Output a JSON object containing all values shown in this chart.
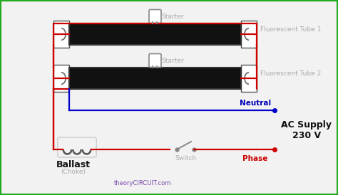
{
  "bg_color": "#f2f2f2",
  "border_color": "#22aa22",
  "wire_red": "#cc0000",
  "wire_blue": "#0000cc",
  "tube_fill": "#111111",
  "text_gray": "#aaaaaa",
  "text_black": "#111111",
  "text_red": "#cc0000",
  "text_blue": "#0000bb",
  "text_purple": "#7744aa",
  "label_ballast": "Ballast",
  "label_choke": "(Choke)",
  "label_switch": "Switch",
  "label_neutral": "Neutral",
  "label_phase": "Phase",
  "label_starter1": "Starter",
  "label_starter2": "Starter",
  "label_tube1": "Fluorescent Tube 1",
  "label_tube2": "Fluorescent Tube 2",
  "label_ac": "AC Supply\n230 V",
  "label_web": "theoryCIRCUIT.com",
  "figw": 4.74,
  "figh": 2.74,
  "dpi": 100
}
